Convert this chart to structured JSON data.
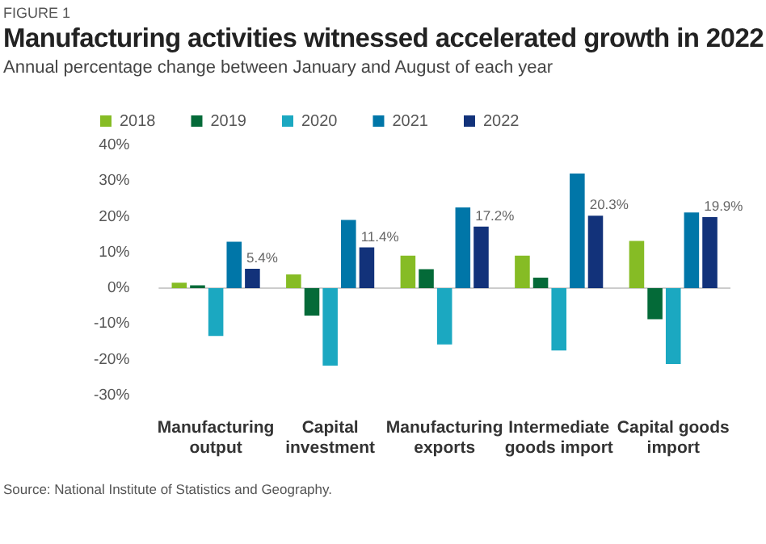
{
  "chart_data": {
    "type": "bar",
    "title": "Manufacturing activities witnessed accelerated growth in 2022",
    "subtitle": "Annual percentage change between January and August of each year",
    "annotations": [
      "FIGURE 1",
      "Source: National Institute of Statistics and Geography."
    ],
    "categories": [
      "Manufacturing output",
      "Capital investment",
      "Manufacturing exports",
      "Intermediate goods import",
      "Capital goods import"
    ],
    "series": [
      {
        "name": "2018",
        "color": "#86bc25",
        "values": [
          1.5,
          3.8,
          9.1,
          9.1,
          13.2
        ]
      },
      {
        "name": "2019",
        "color": "#046a38",
        "values": [
          0.8,
          -7.7,
          5.3,
          2.9,
          -8.7
        ]
      },
      {
        "name": "2020",
        "color": "#1ba8c1",
        "values": [
          -13.4,
          -21.7,
          -15.8,
          -17.5,
          -21.3
        ]
      },
      {
        "name": "2021",
        "color": "#0076a8",
        "values": [
          13,
          19.1,
          22.6,
          32.1,
          21.2
        ]
      },
      {
        "name": "2022",
        "color": "#12327a",
        "values": [
          5.4,
          11.4,
          17.2,
          20.3,
          19.9
        ],
        "value_labels": [
          "5.4%",
          "11.4%",
          "17.2%",
          "20.3%",
          "19.9%"
        ]
      }
    ],
    "ylim": [
      -30,
      40
    ],
    "yticks": [
      {
        "value": -30,
        "label": "-30%"
      },
      {
        "value": -20,
        "label": "-20%"
      },
      {
        "value": -10,
        "label": "-10%"
      },
      {
        "value": 0,
        "label": "0%"
      },
      {
        "value": 10,
        "label": "10%"
      },
      {
        "value": 20,
        "label": "20%"
      },
      {
        "value": 30,
        "label": "30%"
      },
      {
        "value": 40,
        "label": "40%"
      }
    ],
    "ref_lines": [
      {
        "axis": "y",
        "value": 0,
        "color": "#cccccc"
      }
    ],
    "grid": false,
    "legend": "top left"
  }
}
